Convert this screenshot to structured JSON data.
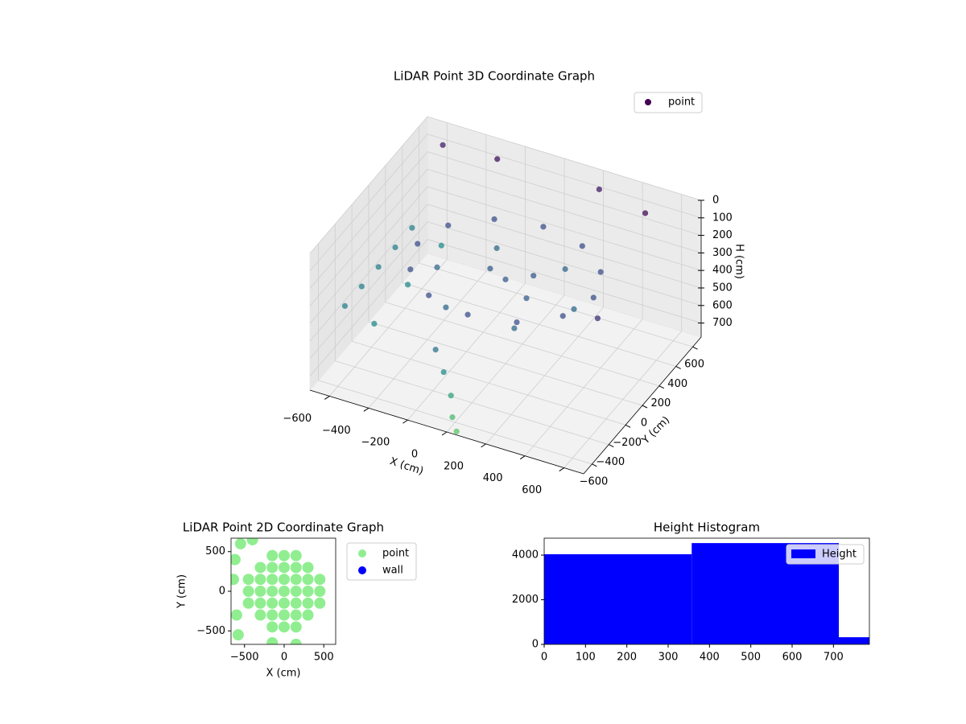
{
  "chart_data": [
    {
      "type": "scatter3d",
      "title": "LiDAR Point 3D Coordinate Graph",
      "xlabel": "X (cm)",
      "ylabel": "Y (cm)",
      "zlabel": "H (cm)",
      "xlim": [
        -700,
        700
      ],
      "ylim": [
        -700,
        700
      ],
      "zlim": [
        0,
        780
      ],
      "xticks": [
        {
          "value": -600,
          "label": "−600"
        },
        {
          "value": -400,
          "label": "−400"
        },
        {
          "value": -200,
          "label": "−200"
        },
        0,
        200,
        400,
        600
      ],
      "yticks": [
        {
          "value": -600,
          "label": "−600"
        },
        {
          "value": -400,
          "label": "−400"
        },
        {
          "value": -200,
          "label": "−200"
        },
        0,
        200,
        400,
        600
      ],
      "zticks": [
        0,
        100,
        200,
        300,
        400,
        500,
        600,
        700
      ],
      "colormap": [
        "#440154",
        "#3b528b",
        "#21918c",
        "#5ec962"
      ],
      "legend": "upper right",
      "series": [
        {
          "name": "point",
          "color": "#440154",
          "x": [
            450,
            390,
            225,
            0,
            -225,
            -390,
            -450,
            -390,
            -225,
            0,
            225,
            390,
            350,
            175,
            -175,
            -350,
            -175,
            175,
            0,
            100,
            -100,
            150,
            -100,
            -50,
            0,
            20,
            50,
            -650,
            -650,
            -650,
            -650,
            -650,
            -500,
            -500,
            -500,
            -300,
            200,
            500,
            -600,
            600
          ],
          "y": [
            0,
            225,
            390,
            450,
            390,
            225,
            0,
            -225,
            -390,
            -450,
            -390,
            -225,
            0,
            303,
            303,
            0,
            -303,
            -303,
            0,
            100,
            50,
            -100,
            -600,
            -620,
            -650,
            -680,
            -700,
            -400,
            -200,
            0,
            200,
            400,
            -400,
            0,
            400,
            600,
            650,
            500,
            650,
            -300
          ],
          "h": [
            250,
            250,
            250,
            250,
            250,
            250,
            250,
            250,
            250,
            250,
            250,
            250,
            350,
            350,
            350,
            350,
            350,
            350,
            300,
            300,
            300,
            300,
            400,
            500,
            600,
            700,
            760,
            450,
            450,
            450,
            450,
            450,
            500,
            500,
            500,
            50,
            80,
            30,
            100,
            150
          ]
        }
      ]
    },
    {
      "type": "scatter",
      "title": "LiDAR Point 2D Coordinate Graph",
      "xlabel": "X (cm)",
      "ylabel": "Y (cm)",
      "xlim": [
        -670,
        650
      ],
      "ylim": [
        -670,
        670
      ],
      "xticks": [
        {
          "value": -500,
          "label": "−500"
        },
        0,
        500
      ],
      "yticks": [
        {
          "value": -500,
          "label": "−500"
        },
        0,
        500
      ],
      "legend": "outside right",
      "series": [
        {
          "name": "point",
          "color": "#90ee90",
          "x": [
            -150,
            0,
            150,
            -300,
            -150,
            0,
            150,
            300,
            -450,
            -300,
            -150,
            0,
            150,
            300,
            450,
            -450,
            -300,
            -150,
            0,
            150,
            300,
            450,
            -450,
            -300,
            -150,
            0,
            150,
            300,
            450,
            -300,
            -150,
            0,
            150,
            300,
            -150,
            0,
            150,
            -620,
            -600,
            -580,
            -550,
            -400,
            -150,
            150,
            -640
          ],
          "y": [
            450,
            450,
            450,
            300,
            300,
            300,
            300,
            300,
            150,
            150,
            150,
            150,
            150,
            150,
            150,
            0,
            0,
            0,
            0,
            0,
            0,
            0,
            -150,
            -150,
            -150,
            -150,
            -150,
            -150,
            -150,
            -300,
            -300,
            -300,
            -300,
            -300,
            -450,
            -450,
            -450,
            400,
            -300,
            -550,
            600,
            650,
            -650,
            -670,
            150
          ]
        },
        {
          "name": "wall",
          "color": "#0000ff",
          "x": [],
          "y": []
        }
      ]
    },
    {
      "type": "histogram",
      "title": "Height Histogram",
      "color": "#0000ff",
      "bins": [
        0,
        357,
        713,
        787
      ],
      "values": [
        4040,
        4540,
        320
      ],
      "series_name": "Height",
      "xlim": [
        0,
        787
      ],
      "ylim": [
        0,
        4760
      ],
      "xticks": [
        0,
        100,
        200,
        300,
        400,
        500,
        600,
        700
      ],
      "yticks": [
        0,
        2000,
        4000
      ],
      "legend": "upper right"
    }
  ]
}
